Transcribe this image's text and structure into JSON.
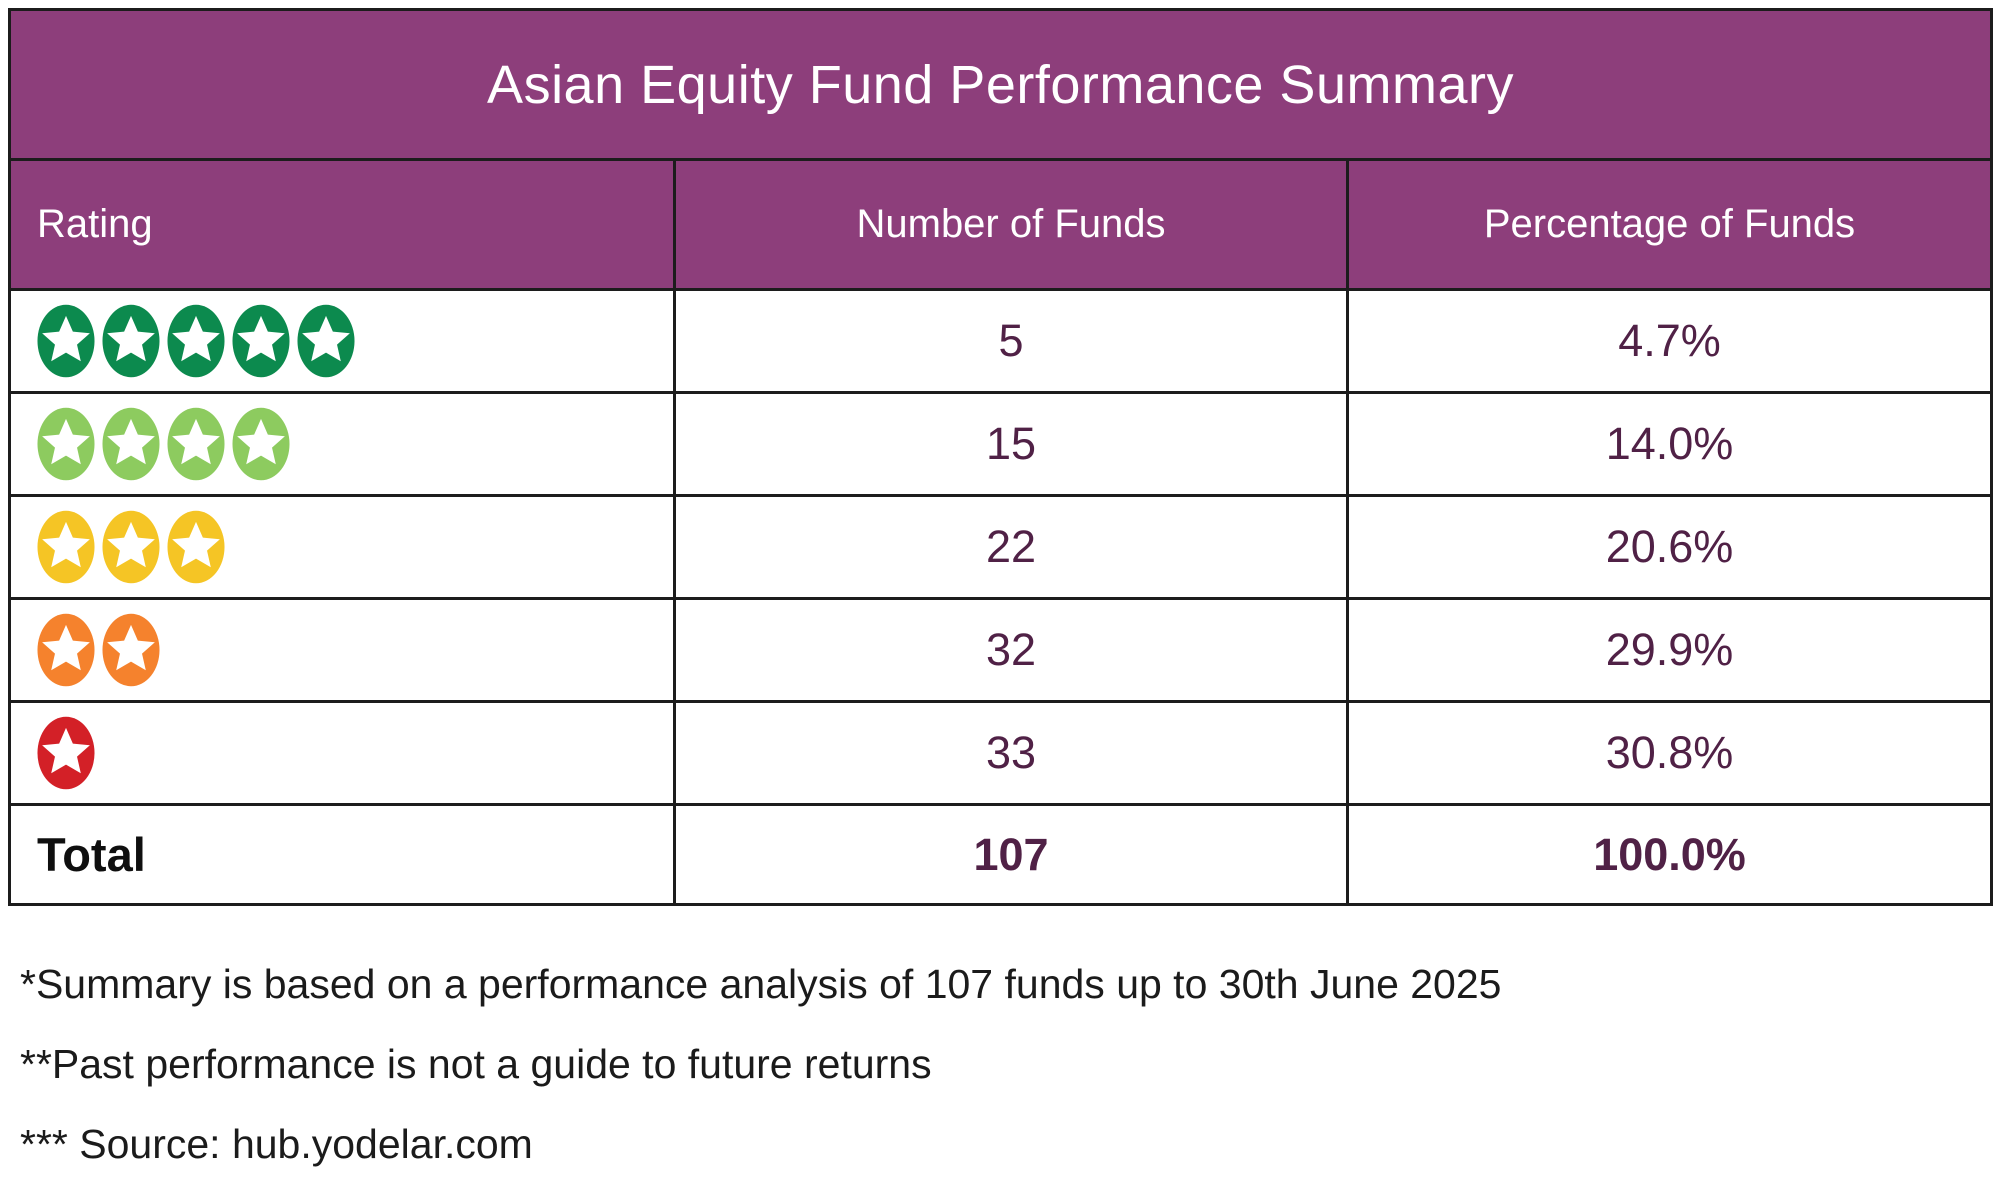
{
  "title": "Asian Equity Fund Performance Summary",
  "table": {
    "columns": [
      "Rating",
      "Number of Funds",
      "Percentage of Funds"
    ],
    "rows": [
      {
        "rating_stars": 5,
        "star_label": "5-star-rating",
        "star_color": "#0c8a4e",
        "funds": "5",
        "pct": "4.7%"
      },
      {
        "rating_stars": 4,
        "star_label": "4-star-rating",
        "star_color": "#8dcb5f",
        "funds": "15",
        "pct": "14.0%"
      },
      {
        "rating_stars": 3,
        "star_label": "3-star-rating",
        "star_color": "#f5c525",
        "funds": "22",
        "pct": "20.6%"
      },
      {
        "rating_stars": 2,
        "star_label": "2-star-rating",
        "star_color": "#f5822d",
        "funds": "32",
        "pct": "29.9%"
      },
      {
        "rating_stars": 1,
        "star_label": "1-star-rating",
        "star_color": "#d32027",
        "funds": "33",
        "pct": "30.8%"
      }
    ],
    "total": {
      "label": "Total",
      "funds": "107",
      "pct": "100.0%"
    }
  },
  "footnotes": [
    "*Summary is based on a performance analysis of 107 funds up to 30th June 2025",
    "**Past performance is not a guide to future returns",
    "*** Source: hub.yodelar.com"
  ],
  "colors": {
    "header_bg": "#8d3e7b",
    "border": "#1c1c1c",
    "value_text": "#502146",
    "total_text": "#0f0f0f",
    "star_green_dark": "#0c8a4e",
    "star_green_light": "#8dcb5f",
    "star_yellow": "#f5c525",
    "star_orange": "#f5822d",
    "star_red": "#d32027"
  },
  "chart_data": {
    "type": "table",
    "title": "Asian Equity Fund Performance Summary",
    "columns": [
      "Rating",
      "Number of Funds",
      "Percentage of Funds"
    ],
    "rows": [
      [
        "5 stars",
        5,
        "4.7%"
      ],
      [
        "4 stars",
        15,
        "14.0%"
      ],
      [
        "3 stars",
        22,
        "20.6%"
      ],
      [
        "2 stars",
        32,
        "29.9%"
      ],
      [
        "1 star",
        33,
        "30.8%"
      ],
      [
        "Total",
        107,
        "100.0%"
      ]
    ],
    "footnotes": [
      "*Summary is based on a performance analysis of 107 funds up to 30th June 2025",
      "**Past performance is not a guide to future returns",
      "*** Source: hub.yodelar.com"
    ]
  }
}
